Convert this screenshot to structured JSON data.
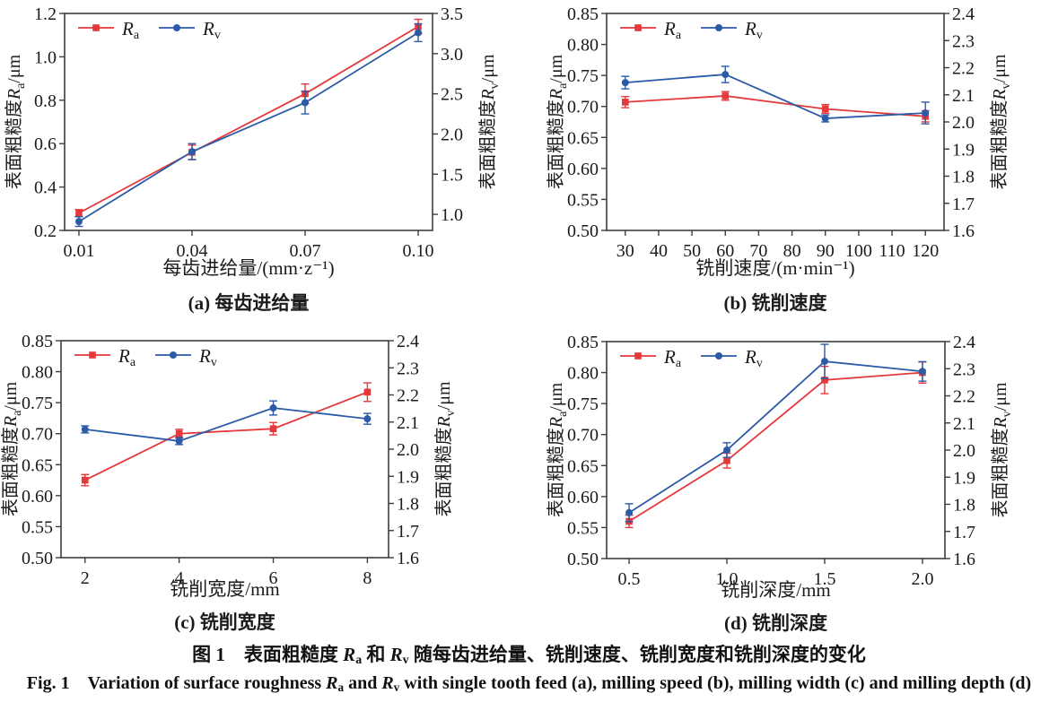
{
  "colors": {
    "ra": "#e5383b",
    "rv": "#2b5aa6",
    "axis": "#3d3d3d",
    "text": "#1b1b1b"
  },
  "legend": {
    "items": [
      {
        "symbol": "R",
        "sub": "a",
        "series": "Ra",
        "marker": "square",
        "color_key": "ra"
      },
      {
        "symbol": "R",
        "sub": "v",
        "series": "Rv",
        "marker": "circle",
        "color_key": "rv"
      }
    ]
  },
  "captions": {
    "zh_parts": [
      {
        "t": "图 1　表面粗糙度 "
      },
      {
        "t": "R",
        "cls": "ri"
      },
      {
        "t": "a",
        "cls": "sub"
      },
      {
        "t": " 和 "
      },
      {
        "t": "R",
        "cls": "ri"
      },
      {
        "t": "v",
        "cls": "sub"
      },
      {
        "t": " 随每齿进给量、铣削速度、铣削宽度和铣削深度的变化"
      }
    ],
    "en_parts": [
      {
        "t": "Fig. 1  Variation of surface roughness "
      },
      {
        "t": "R",
        "cls": "ri"
      },
      {
        "t": "a",
        "cls": "sub"
      },
      {
        "t": " and "
      },
      {
        "t": "R",
        "cls": "ri"
      },
      {
        "t": "v",
        "cls": "sub"
      },
      {
        "t": " with single tooth feed (a), milling speed (b), milling width (c) and milling depth (d)"
      }
    ]
  },
  "chart_data": [
    {
      "panel": "a",
      "type": "line",
      "subtitle": "(a) 每齿进给量",
      "xlabel": "每齿进给量/(mm·z⁻¹)",
      "x_range": [
        0.0062,
        0.1038
      ],
      "x_ticks": [
        {
          "v": 0.01,
          "label": "0.01"
        },
        {
          "v": 0.04,
          "label": "0.04"
        },
        {
          "v": 0.07,
          "label": "0.07"
        },
        {
          "v": 0.1,
          "label": "0.10"
        }
      ],
      "left_axis": {
        "prefix": "表面粗糙度",
        "symbol": "R",
        "sub": "a",
        "suffix": "/μm",
        "range": [
          0.2,
          1.2
        ],
        "ticks": [
          {
            "v": 0.2,
            "label": "0.2"
          },
          {
            "v": 0.4,
            "label": "0.4"
          },
          {
            "v": 0.6,
            "label": "0.6"
          },
          {
            "v": 0.8,
            "label": "0.8"
          },
          {
            "v": 1.0,
            "label": "1.0"
          },
          {
            "v": 1.2,
            "label": "1.2"
          }
        ]
      },
      "right_axis": {
        "prefix": "表面粗糙度",
        "symbol": "R",
        "sub": "v",
        "suffix": "/μm",
        "range": [
          0.8,
          3.5
        ],
        "ticks": [
          {
            "v": 1.0,
            "label": "1.0"
          },
          {
            "v": 1.5,
            "label": "1.5"
          },
          {
            "v": 2.0,
            "label": "2.0"
          },
          {
            "v": 2.5,
            "label": "2.5"
          },
          {
            "v": 3.0,
            "label": "3.0"
          },
          {
            "v": 3.5,
            "label": "3.5"
          }
        ]
      },
      "series": [
        {
          "name": "Ra",
          "axis": "left",
          "marker": "square",
          "color_key": "ra",
          "x": [
            0.01,
            0.04,
            0.07,
            0.1
          ],
          "y": [
            0.28,
            0.56,
            0.83,
            1.14
          ],
          "yerr": [
            0.016,
            0.033,
            0.045,
            0.033
          ]
        },
        {
          "name": "Rv",
          "axis": "right",
          "marker": "circle",
          "color_key": "rv",
          "x": [
            0.01,
            0.04,
            0.07,
            0.1
          ],
          "y": [
            0.91,
            1.78,
            2.39,
            3.26
          ],
          "yerr": [
            0.06,
            0.1,
            0.14,
            0.11
          ]
        }
      ]
    },
    {
      "panel": "b",
      "type": "line",
      "subtitle": "(b) 铣削速度",
      "xlabel": "铣削速度/(m·min⁻¹)",
      "x_range": [
        24.4,
        125.6
      ],
      "x_ticks": [
        {
          "v": 30,
          "label": "30"
        },
        {
          "v": 40,
          "label": "40"
        },
        {
          "v": 50,
          "label": "50"
        },
        {
          "v": 60,
          "label": "60"
        },
        {
          "v": 70,
          "label": "70"
        },
        {
          "v": 80,
          "label": "80"
        },
        {
          "v": 90,
          "label": "90"
        },
        {
          "v": 100,
          "label": "100"
        },
        {
          "v": 110,
          "label": "110"
        },
        {
          "v": 120,
          "label": "120"
        }
      ],
      "left_axis": {
        "prefix": "表面粗糙度",
        "symbol": "R",
        "sub": "a",
        "suffix": "/μm",
        "range": [
          0.5,
          0.85
        ],
        "ticks": [
          {
            "v": 0.5,
            "label": "0.50"
          },
          {
            "v": 0.55,
            "label": "0.55"
          },
          {
            "v": 0.6,
            "label": "0.60"
          },
          {
            "v": 0.65,
            "label": "0.65"
          },
          {
            "v": 0.7,
            "label": "0.70"
          },
          {
            "v": 0.75,
            "label": "0.75"
          },
          {
            "v": 0.8,
            "label": "0.80"
          },
          {
            "v": 0.85,
            "label": "0.85"
          }
        ]
      },
      "right_axis": {
        "prefix": "表面粗糙度",
        "symbol": "R",
        "sub": "v",
        "suffix": "/μm",
        "range": [
          1.6,
          2.4
        ],
        "ticks": [
          {
            "v": 1.6,
            "label": "1.6"
          },
          {
            "v": 1.7,
            "label": "1.7"
          },
          {
            "v": 1.8,
            "label": "1.8"
          },
          {
            "v": 1.9,
            "label": "1.9"
          },
          {
            "v": 2.0,
            "label": "2.0"
          },
          {
            "v": 2.1,
            "label": "2.1"
          },
          {
            "v": 2.2,
            "label": "2.2"
          },
          {
            "v": 2.3,
            "label": "2.3"
          },
          {
            "v": 2.4,
            "label": "2.4"
          }
        ]
      },
      "series": [
        {
          "name": "Ra",
          "axis": "left",
          "marker": "square",
          "color_key": "ra",
          "x": [
            30,
            60,
            90,
            120
          ],
          "y": [
            0.707,
            0.717,
            0.696,
            0.684
          ],
          "yerr": [
            0.009,
            0.007,
            0.007,
            0.009
          ]
        },
        {
          "name": "Rv",
          "axis": "right",
          "marker": "circle",
          "color_key": "rv",
          "x": [
            30,
            60,
            90,
            120
          ],
          "y": [
            2.145,
            2.175,
            2.013,
            2.033
          ],
          "yerr": [
            0.023,
            0.03,
            0.013,
            0.04
          ]
        }
      ]
    },
    {
      "panel": "c",
      "type": "line",
      "subtitle": "(c) 铣削宽度",
      "xlabel": "铣削宽度/mm",
      "x_range": [
        1.49,
        8.45
      ],
      "x_ticks": [
        {
          "v": 2,
          "label": "2"
        },
        {
          "v": 4,
          "label": "4"
        },
        {
          "v": 6,
          "label": "6"
        },
        {
          "v": 8,
          "label": "8"
        }
      ],
      "left_axis": {
        "prefix": "表面粗糙度",
        "symbol": "R",
        "sub": "a",
        "suffix": "/μm",
        "range": [
          0.5,
          0.85
        ],
        "ticks": [
          {
            "v": 0.5,
            "label": "0.50"
          },
          {
            "v": 0.55,
            "label": "0.55"
          },
          {
            "v": 0.6,
            "label": "0.60"
          },
          {
            "v": 0.65,
            "label": "0.65"
          },
          {
            "v": 0.7,
            "label": "0.70"
          },
          {
            "v": 0.75,
            "label": "0.75"
          },
          {
            "v": 0.8,
            "label": "0.80"
          },
          {
            "v": 0.85,
            "label": "0.85"
          }
        ]
      },
      "right_axis": {
        "prefix": "表面粗糙度",
        "symbol": "R",
        "sub": "v",
        "suffix": "/μm",
        "range": [
          1.6,
          2.4
        ],
        "ticks": [
          {
            "v": 1.6,
            "label": "1.6"
          },
          {
            "v": 1.7,
            "label": "1.7"
          },
          {
            "v": 1.8,
            "label": "1.8"
          },
          {
            "v": 1.9,
            "label": "1.9"
          },
          {
            "v": 2.0,
            "label": "2.0"
          },
          {
            "v": 2.1,
            "label": "2.1"
          },
          {
            "v": 2.2,
            "label": "2.2"
          },
          {
            "v": 2.3,
            "label": "2.3"
          },
          {
            "v": 2.4,
            "label": "2.4"
          }
        ]
      },
      "series": [
        {
          "name": "Ra",
          "axis": "left",
          "marker": "square",
          "color_key": "ra",
          "x": [
            2,
            4,
            6,
            8
          ],
          "y": [
            0.625,
            0.7,
            0.708,
            0.767
          ],
          "yerr": [
            0.009,
            0.007,
            0.01,
            0.015
          ]
        },
        {
          "name": "Rv",
          "axis": "right",
          "marker": "circle",
          "color_key": "rv",
          "x": [
            2,
            4,
            6,
            8
          ],
          "y": [
            2.073,
            2.03,
            2.152,
            2.112
          ],
          "yerr": [
            0.013,
            0.013,
            0.026,
            0.02
          ]
        }
      ]
    },
    {
      "panel": "d",
      "type": "line",
      "subtitle": "(d) 铣削深度",
      "xlabel": "铣削深度/mm",
      "x_range": [
        0.385,
        2.115
      ],
      "x_ticks": [
        {
          "v": 0.5,
          "label": "0.5"
        },
        {
          "v": 1.0,
          "label": "1.0"
        },
        {
          "v": 1.5,
          "label": "1.5"
        },
        {
          "v": 2.0,
          "label": "2.0"
        }
      ],
      "left_axis": {
        "prefix": "表面粗糙度",
        "symbol": "R",
        "sub": "a",
        "suffix": "/μm",
        "range": [
          0.5,
          0.85
        ],
        "ticks": [
          {
            "v": 0.5,
            "label": "0.50"
          },
          {
            "v": 0.55,
            "label": "0.55"
          },
          {
            "v": 0.6,
            "label": "0.60"
          },
          {
            "v": 0.65,
            "label": "0.65"
          },
          {
            "v": 0.7,
            "label": "0.70"
          },
          {
            "v": 0.75,
            "label": "0.75"
          },
          {
            "v": 0.8,
            "label": "0.80"
          },
          {
            "v": 0.85,
            "label": "0.85"
          }
        ]
      },
      "right_axis": {
        "prefix": "表面粗糙度",
        "symbol": "R",
        "sub": "v",
        "suffix": "/μm",
        "range": [
          1.6,
          2.4
        ],
        "ticks": [
          {
            "v": 1.6,
            "label": "1.6"
          },
          {
            "v": 1.7,
            "label": "1.7"
          },
          {
            "v": 1.8,
            "label": "1.8"
          },
          {
            "v": 1.9,
            "label": "1.9"
          },
          {
            "v": 2.0,
            "label": "2.0"
          },
          {
            "v": 2.1,
            "label": "2.1"
          },
          {
            "v": 2.2,
            "label": "2.2"
          },
          {
            "v": 2.3,
            "label": "2.3"
          },
          {
            "v": 2.4,
            "label": "2.4"
          }
        ]
      },
      "series": [
        {
          "name": "Ra",
          "axis": "left",
          "marker": "square",
          "color_key": "ra",
          "x": [
            0.5,
            1.0,
            1.5,
            2.0
          ],
          "y": [
            0.56,
            0.658,
            0.788,
            0.8
          ],
          "yerr": [
            0.01,
            0.012,
            0.022,
            0.017
          ]
        },
        {
          "name": "Rv",
          "axis": "right",
          "marker": "circle",
          "color_key": "rv",
          "x": [
            0.5,
            1.0,
            1.5,
            2.0
          ],
          "y": [
            1.769,
            2.0,
            2.327,
            2.29
          ],
          "yerr": [
            0.033,
            0.027,
            0.063,
            0.036
          ]
        }
      ]
    }
  ]
}
